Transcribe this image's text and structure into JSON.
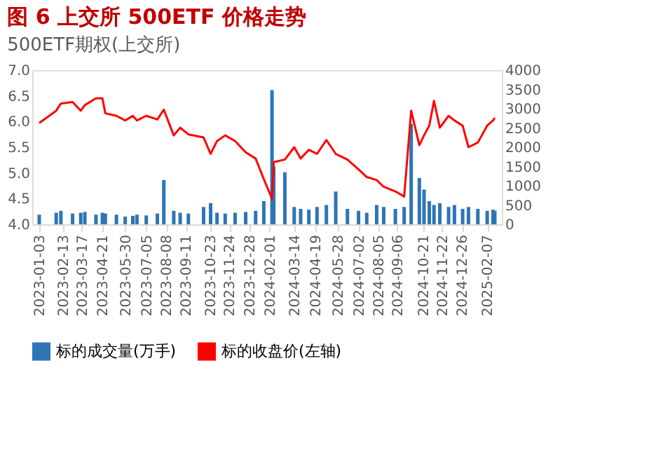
{
  "chart_data": {
    "type": "line",
    "title": "图 6 上交所 500ETF 价格走势",
    "subtitle": "500ETF期权(上交所)",
    "x": [
      "2023-01-03",
      "2023-02-01",
      "2023-02-09",
      "2023-03-01",
      "2023-03-15",
      "2023-03-22",
      "2023-04-10",
      "2023-04-21",
      "2023-04-26",
      "2023-05-15",
      "2023-05-30",
      "2023-06-12",
      "2023-06-19",
      "2023-07-05",
      "2023-07-24",
      "2023-08-04",
      "2023-08-21",
      "2023-09-01",
      "2023-09-15",
      "2023-10-11",
      "2023-10-23",
      "2023-11-03",
      "2023-11-17",
      "2023-12-04",
      "2023-12-22",
      "2024-01-08",
      "2024-01-22",
      "2024-02-05",
      "2024-02-08",
      "2024-02-27",
      "2024-03-14",
      "2024-03-25",
      "2024-04-08",
      "2024-04-22",
      "2024-05-08",
      "2024-05-24",
      "2024-06-13",
      "2024-07-02",
      "2024-07-16",
      "2024-08-02",
      "2024-08-14",
      "2024-09-03",
      "2024-09-18",
      "2024-09-30",
      "2024-10-14",
      "2024-10-22",
      "2024-10-31",
      "2024-11-08",
      "2024-11-18",
      "2024-12-03",
      "2024-12-13",
      "2024-12-27",
      "2025-01-06",
      "2025-01-22",
      "2025-02-07",
      "2025-02-17",
      "2025-02-20"
    ],
    "series": [
      {
        "name": "标的成交量(万手)",
        "type": "bar",
        "axis": "y2",
        "color": "#2e75b6",
        "values": [
          250,
          300,
          350,
          280,
          300,
          320,
          250,
          300,
          280,
          250,
          200,
          220,
          250,
          230,
          280,
          1150,
          350,
          300,
          280,
          450,
          550,
          300,
          280,
          300,
          320,
          350,
          600,
          3480,
          1500,
          1350,
          450,
          400,
          380,
          450,
          500,
          850,
          400,
          350,
          300,
          500,
          450,
          400,
          450,
          2600,
          1200,
          900,
          600,
          500,
          550,
          450,
          500,
          400,
          450,
          400,
          350,
          380,
          350
        ]
      },
      {
        "name": "标的收盘价(左轴)",
        "color": "#ff0000",
        "values": [
          5.97,
          6.21,
          6.35,
          6.38,
          6.21,
          6.32,
          6.45,
          6.45,
          6.16,
          6.11,
          6.02,
          6.11,
          6.02,
          6.11,
          6.04,
          6.23,
          5.73,
          5.88,
          5.75,
          5.69,
          5.37,
          5.62,
          5.73,
          5.62,
          5.4,
          5.28,
          4.88,
          4.5,
          5.21,
          5.26,
          5.5,
          5.28,
          5.45,
          5.37,
          5.64,
          5.37,
          5.26,
          5.07,
          4.92,
          4.86,
          4.73,
          4.64,
          4.54,
          6.21,
          5.54,
          5.73,
          5.92,
          6.4,
          5.88,
          6.11,
          6.02,
          5.92,
          5.5,
          5.59,
          5.92,
          6.02,
          6.07
        ]
      }
    ],
    "xlim": [
      "2023-01-03",
      "2025-02-20"
    ],
    "xticks": [
      "2023-01-03",
      "2023-02-13",
      "2023-03-17",
      "2023-04-21",
      "2023-05-30",
      "2023-07-05",
      "2023-08-08",
      "2023-09-11",
      "2023-10-23",
      "2023-11-24",
      "2023-12-28",
      "2024-02-01",
      "2024-03-14",
      "2024-04-19",
      "2024-05-28",
      "2024-07-02",
      "2024-08-05",
      "2024-09-06",
      "2024-10-21",
      "2024-11-22",
      "2024-12-26",
      "2025-02-07"
    ],
    "ylim": [
      4.0,
      7.0
    ],
    "yticks": [
      {
        "value": 4,
        "label": "4.0"
      },
      {
        "value": 4.5,
        "label": "4.5"
      },
      {
        "value": 5,
        "label": "5.0"
      },
      {
        "value": 5.5,
        "label": "5.5"
      },
      {
        "value": 6,
        "label": "6.0"
      },
      {
        "value": 6.5,
        "label": "6.5"
      },
      {
        "value": 7,
        "label": "7.0"
      }
    ],
    "y2lim": [
      0,
      4000
    ],
    "y2ticks": [
      0,
      500,
      1000,
      1500,
      2000,
      2500,
      3000,
      3500,
      4000
    ],
    "legend": "bottom",
    "grid": false,
    "marker": "none",
    "line_style": "solid"
  }
}
